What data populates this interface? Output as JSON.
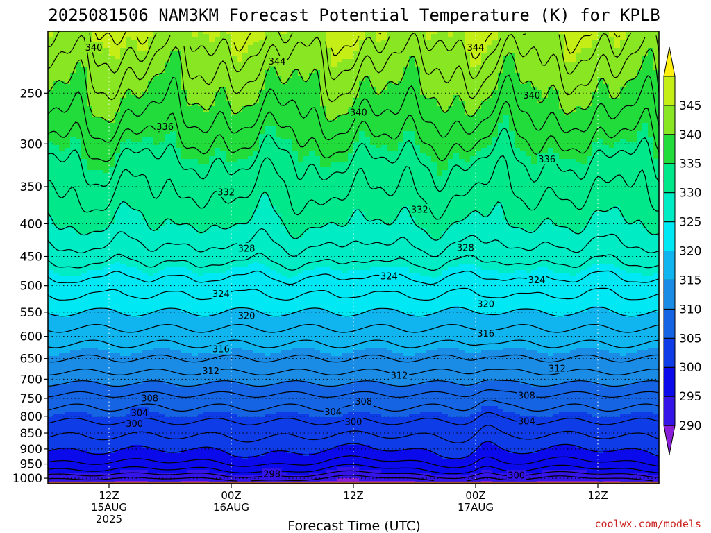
{
  "chart_data": {
    "type": "heatmap",
    "title": "2025081506 NAM3KM Forecast Potential Temperature (K) for KPLB",
    "xlabel": "Forecast Time (UTC)",
    "ylabel": "",
    "credit": "coolwx.com/models",
    "x_ticks": [
      {
        "hour": 6,
        "lines": [
          "12Z",
          "15AUG",
          "2025"
        ]
      },
      {
        "hour": 18,
        "lines": [
          "00Z",
          "16AUG"
        ]
      },
      {
        "hour": 30,
        "lines": [
          "12Z"
        ]
      },
      {
        "hour": 42,
        "lines": [
          "00Z",
          "17AUG"
        ]
      },
      {
        "hour": 54,
        "lines": [
          "12Z"
        ]
      }
    ],
    "xlim": [
      0,
      60
    ],
    "y_scale": "log",
    "ylim": [
      1020,
      200
    ],
    "y_ticks": [
      250,
      300,
      350,
      400,
      450,
      500,
      550,
      600,
      650,
      700,
      750,
      800,
      850,
      900,
      950,
      1000
    ],
    "colorbar": {
      "levels": [
        285,
        290,
        295,
        300,
        305,
        310,
        315,
        320,
        325,
        330,
        335,
        340,
        345,
        350
      ],
      "labels": [
        290,
        295,
        300,
        305,
        310,
        315,
        320,
        325,
        330,
        335,
        340,
        345
      ],
      "colors": [
        "#8a1ed8",
        "#3414e6",
        "#0a0aeb",
        "#0e3ce6",
        "#1464e4",
        "#1a8ce6",
        "#10b4ee",
        "#00e8f4",
        "#00ecc4",
        "#00e88a",
        "#22dc3c",
        "#88e622",
        "#c4ee16",
        "#fff010"
      ]
    },
    "ground_color": "#a0522d",
    "profile_base": [
      [
        1012,
        291
      ],
      [
        1000,
        293
      ],
      [
        975,
        296
      ],
      [
        950,
        298
      ],
      [
        925,
        299.5
      ],
      [
        900,
        300.5
      ],
      [
        875,
        301.5
      ],
      [
        850,
        302.5
      ],
      [
        825,
        303.5
      ],
      [
        800,
        304.8
      ],
      [
        775,
        306
      ],
      [
        750,
        307.3
      ],
      [
        725,
        309
      ],
      [
        700,
        310.8
      ],
      [
        675,
        312.5
      ],
      [
        650,
        314
      ],
      [
        625,
        315.5
      ],
      [
        600,
        317
      ],
      [
        575,
        318.5
      ],
      [
        550,
        320
      ],
      [
        525,
        321.5
      ],
      [
        500,
        323
      ],
      [
        475,
        324.8
      ],
      [
        450,
        326.8
      ],
      [
        425,
        328.5
      ],
      [
        400,
        330
      ],
      [
        375,
        331.2
      ],
      [
        350,
        332.4
      ],
      [
        325,
        333.6
      ],
      [
        300,
        335.6
      ],
      [
        275,
        337.8
      ],
      [
        250,
        340
      ],
      [
        225,
        342.2
      ],
      [
        200,
        345
      ]
    ],
    "contour_interval": 2,
    "contour_labels": [
      {
        "value": 340,
        "hour": 4.5,
        "p": 212
      },
      {
        "value": 344,
        "hour": 22.5,
        "p": 223
      },
      {
        "value": 344,
        "hour": 42,
        "p": 212
      },
      {
        "value": 340,
        "hour": 30.5,
        "p": 268
      },
      {
        "value": 340,
        "hour": 47.5,
        "p": 252
      },
      {
        "value": 336,
        "hour": 11.5,
        "p": 282
      },
      {
        "value": 336,
        "hour": 49,
        "p": 317
      },
      {
        "value": 332,
        "hour": 17.5,
        "p": 357
      },
      {
        "value": 332,
        "hour": 36.5,
        "p": 380
      },
      {
        "value": 328,
        "hour": 19.5,
        "p": 437
      },
      {
        "value": 328,
        "hour": 41,
        "p": 436
      },
      {
        "value": 324,
        "hour": 33.5,
        "p": 483
      },
      {
        "value": 324,
        "hour": 48,
        "p": 490
      },
      {
        "value": 324,
        "hour": 17,
        "p": 515
      },
      {
        "value": 320,
        "hour": 19.5,
        "p": 557
      },
      {
        "value": 320,
        "hour": 43,
        "p": 534
      },
      {
        "value": 316,
        "hour": 17,
        "p": 628
      },
      {
        "value": 316,
        "hour": 43,
        "p": 594
      },
      {
        "value": 312,
        "hour": 16,
        "p": 680
      },
      {
        "value": 312,
        "hour": 34.5,
        "p": 691
      },
      {
        "value": 312,
        "hour": 50,
        "p": 674
      },
      {
        "value": 308,
        "hour": 10,
        "p": 750
      },
      {
        "value": 308,
        "hour": 31,
        "p": 759
      },
      {
        "value": 308,
        "hour": 47,
        "p": 743
      },
      {
        "value": 304,
        "hour": 9,
        "p": 791
      },
      {
        "value": 304,
        "hour": 28,
        "p": 788
      },
      {
        "value": 304,
        "hour": 47,
        "p": 815
      },
      {
        "value": 300,
        "hour": 8.5,
        "p": 822
      },
      {
        "value": 300,
        "hour": 30,
        "p": 817
      },
      {
        "value": 298,
        "hour": 22,
        "p": 985
      },
      {
        "value": 300,
        "hour": 46,
        "p": 990
      }
    ]
  }
}
